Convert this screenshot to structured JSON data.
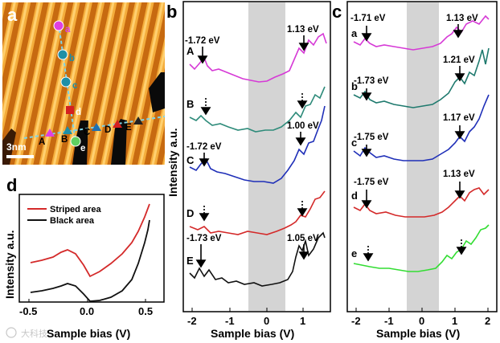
{
  "figure": {
    "panel_labels": [
      "a",
      "b",
      "c",
      "d"
    ],
    "watermark": "大科技"
  },
  "panel_a": {
    "scale_bar": "3nm",
    "chain1_points": [
      "a",
      "b",
      "c",
      "d",
      "e"
    ],
    "chain2_points": [
      "A",
      "B",
      "C",
      "D",
      "E"
    ],
    "colors": {
      "a": "#e040e0",
      "b": "#1f8fa6",
      "c": "#1f8fa6",
      "d": "#d42020",
      "e": "#60d060",
      "A": "#e040e0",
      "B": "#1f8fa6",
      "C": "#1f6fb0",
      "D": "#d42020",
      "E": "#222222"
    }
  },
  "panel_b": {
    "xlabel": "Sample bias (V)",
    "ylabel": "Intensity a.u.",
    "xticks": [
      "-2",
      "-1",
      "0",
      "1"
    ],
    "curve_labels": [
      "A",
      "B",
      "C",
      "D",
      "E"
    ],
    "annotations": [
      "-1.72 eV",
      "1.13 eV",
      "1.00 eV",
      "-1.72 eV",
      "-1.73 eV",
      "1.05 eV"
    ]
  },
  "panel_c": {
    "xlabel": "Sample bias (V)",
    "xticks": [
      "-2",
      "-1",
      "0",
      "1",
      "2"
    ],
    "curve_labels": [
      "a",
      "b",
      "c",
      "d",
      "e"
    ],
    "annotations": [
      "-1.71 eV",
      "1.13 eV",
      "1.21 eV",
      "-1.73 eV",
      "1.17 eV",
      "-1.75 eV",
      "-1.75 eV",
      "1.13 eV"
    ]
  },
  "panel_d": {
    "xlabel": "Sample bias (V)",
    "ylabel": "Intensity a.u.",
    "xticks": [
      "-0.5",
      "0.0",
      "0.5"
    ],
    "legend": [
      "Striped area",
      "Black area"
    ]
  },
  "chart_data": [
    {
      "type": "line",
      "title": "b",
      "xlabel": "Sample bias (V)",
      "ylabel": "Intensity a.u.",
      "xlim": [
        -2.3,
        1.8
      ],
      "shaded_region": [
        -0.25,
        0.5
      ],
      "series": [
        {
          "name": "A",
          "color": "#d63ad6",
          "onset_neg_eV": -1.72,
          "onset_pos_eV": 1.13
        },
        {
          "name": "B",
          "color": "#2e8b7a",
          "onset_neg_eV": null,
          "onset_pos_eV": null
        },
        {
          "name": "C",
          "color": "#1f2fb8",
          "onset_neg_eV": -1.72,
          "onset_pos_eV": 1.0
        },
        {
          "name": "D",
          "color": "#d42a2a",
          "onset_neg_eV": null,
          "onset_pos_eV": null
        },
        {
          "name": "E",
          "color": "#111111",
          "onset_neg_eV": -1.73,
          "onset_pos_eV": 1.05
        }
      ]
    },
    {
      "type": "line",
      "title": "c",
      "xlabel": "Sample bias (V)",
      "xlim": [
        -2.3,
        2.1
      ],
      "shaded_region": [
        -0.25,
        0.25
      ],
      "series": [
        {
          "name": "a",
          "color": "#d63ad6",
          "onset_neg_eV": -1.71,
          "onset_pos_eV": 1.13
        },
        {
          "name": "b",
          "color": "#1f7a6e",
          "onset_neg_eV": -1.73,
          "onset_pos_eV": 1.21
        },
        {
          "name": "c",
          "color": "#1f2fb8",
          "onset_neg_eV": -1.75,
          "onset_pos_eV": 1.17
        },
        {
          "name": "d",
          "color": "#d42a2a",
          "onset_neg_eV": -1.75,
          "onset_pos_eV": 1.13
        },
        {
          "name": "e",
          "color": "#33dd33",
          "onset_neg_eV": null,
          "onset_pos_eV": null
        }
      ]
    },
    {
      "type": "line",
      "title": "d",
      "xlabel": "Sample bias (V)",
      "ylabel": "Intensity a.u.",
      "xlim": [
        -0.65,
        0.65
      ],
      "series": [
        {
          "name": "Striped area",
          "color": "#d42a2a",
          "x": [
            -0.55,
            -0.45,
            -0.35,
            -0.28,
            -0.22,
            -0.15,
            -0.08,
            0.0,
            0.08,
            0.18,
            0.28,
            0.38,
            0.46,
            0.52,
            0.58
          ],
          "y": [
            0.52,
            0.55,
            0.58,
            0.63,
            0.66,
            0.62,
            0.52,
            0.4,
            0.46,
            0.56,
            0.66,
            0.78,
            0.92,
            1.08,
            1.25
          ]
        },
        {
          "name": "Black area",
          "color": "#111111",
          "x": [
            -0.55,
            -0.45,
            -0.35,
            -0.28,
            -0.22,
            -0.15,
            -0.08,
            0.0,
            0.08,
            0.18,
            0.28,
            0.38,
            0.46,
            0.52,
            0.58,
            0.6
          ],
          "y": [
            0.12,
            0.14,
            0.16,
            0.18,
            0.21,
            0.19,
            0.12,
            0.03,
            0.02,
            0.05,
            0.12,
            0.24,
            0.4,
            0.62,
            0.88,
            1.03
          ]
        }
      ]
    }
  ]
}
